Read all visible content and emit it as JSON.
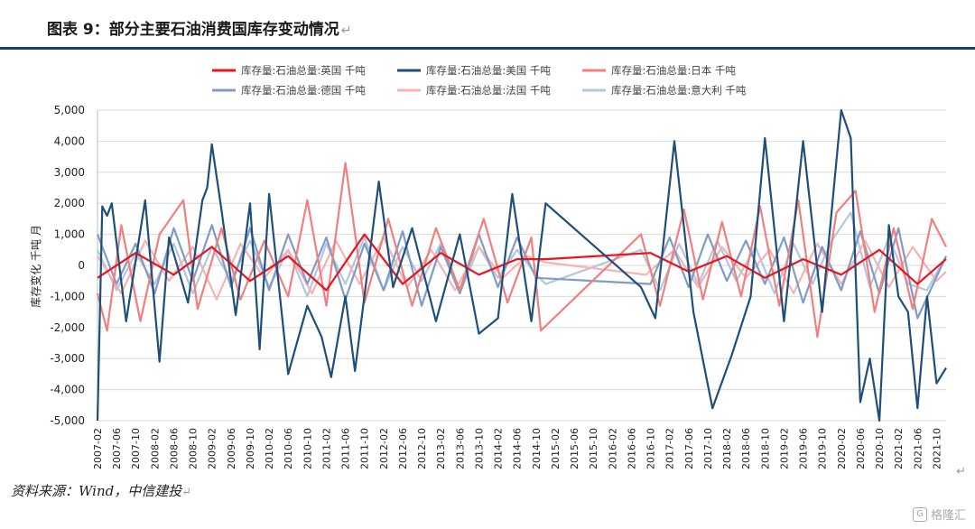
{
  "title": "图表 9：部分主要石油消费国库存变动情况",
  "source": "资料来源：Wind，中信建投",
  "watermark": "格隆汇",
  "return_mark": "↵",
  "chart_data": {
    "type": "line",
    "ylabel": "库存变化 千吨 月",
    "ylim": [
      -5000,
      5000
    ],
    "yticks": [
      5000,
      4000,
      3000,
      2000,
      1000,
      0,
      -1000,
      -2000,
      -3000,
      -4000,
      -5000
    ],
    "ytick_labels": [
      "5,000",
      "4,000",
      "3,000",
      "2,000",
      "1,000",
      "0",
      "-1,000",
      "-2,000",
      "-3,000",
      "-4,000",
      "-5,000"
    ],
    "grid": true,
    "legend_position": "top",
    "x_start": "2007-02",
    "x_end": "2021-12",
    "xtick_labels": [
      "2007-02",
      "2007-06",
      "2007-10",
      "2008-02",
      "2008-06",
      "2008-10",
      "2009-02",
      "2009-06",
      "2009-10",
      "2010-02",
      "2010-06",
      "2010-10",
      "2011-02",
      "2011-06",
      "2011-10",
      "2012-02",
      "2012-06",
      "2012-10",
      "2013-02",
      "2013-06",
      "2013-10",
      "2014-02",
      "2014-06",
      "2014-10",
      "2015-02",
      "2015-06",
      "2015-10",
      "2016-02",
      "2016-06",
      "2016-10",
      "2017-02",
      "2017-06",
      "2017-10",
      "2018-02",
      "2018-06",
      "2018-10",
      "2019-02",
      "2019-06",
      "2019-10",
      "2020-02",
      "2020-06",
      "2020-10",
      "2021-02",
      "2021-06",
      "2021-10"
    ],
    "series": [
      {
        "name": "库存量:石油总量:英国  千吨",
        "color": "#e8141e",
        "width": 2.2,
        "x": [
          "2007-02",
          "2007-10",
          "2008-06",
          "2009-02",
          "2009-10",
          "2010-06",
          "2011-02",
          "2011-10",
          "2012-06",
          "2013-02",
          "2013-10",
          "2014-06",
          "2014-12",
          "2016-10",
          "2017-06",
          "2018-02",
          "2018-10",
          "2019-06",
          "2020-02",
          "2020-10",
          "2021-06",
          "2021-12"
        ],
        "values": [
          -400,
          400,
          -300,
          600,
          -500,
          300,
          -800,
          1000,
          -600,
          400,
          -300,
          200,
          200,
          400,
          -200,
          300,
          -400,
          200,
          -300,
          500,
          -600,
          200
        ]
      },
      {
        "name": "库存量:石油总量:美国  千吨",
        "color": "#1f4e79",
        "width": 2.2,
        "x": [
          "2007-02",
          "2007-03",
          "2007-04",
          "2007-05",
          "2007-08",
          "2007-12",
          "2008-03",
          "2008-05",
          "2008-09",
          "2008-12",
          "2009-01",
          "2009-02",
          "2009-04",
          "2009-07",
          "2009-10",
          "2009-12",
          "2010-02",
          "2010-06",
          "2010-10",
          "2011-01",
          "2011-03",
          "2011-06",
          "2011-08",
          "2012-01",
          "2012-04",
          "2012-08",
          "2013-01",
          "2013-06",
          "2013-10",
          "2014-02",
          "2014-05",
          "2014-09",
          "2014-12",
          "2016-08",
          "2016-11",
          "2017-03",
          "2017-07",
          "2017-11",
          "2018-03",
          "2018-07",
          "2018-10",
          "2019-02",
          "2019-06",
          "2019-10",
          "2020-02",
          "2020-04",
          "2020-06",
          "2020-08",
          "2020-10",
          "2020-12",
          "2021-02",
          "2021-04",
          "2021-06",
          "2021-08",
          "2021-10",
          "2021-12"
        ],
        "values": [
          -5000,
          1900,
          1600,
          2000,
          -1800,
          2100,
          -3100,
          900,
          -1200,
          2100,
          2500,
          3900,
          1800,
          -1600,
          2000,
          -2700,
          2300,
          -3500,
          -1300,
          -2300,
          -3600,
          -1000,
          -3400,
          2700,
          -700,
          1200,
          -1800,
          1000,
          -2200,
          -1700,
          2300,
          -1800,
          2000,
          -700,
          -1700,
          4000,
          -1500,
          -4600,
          -2900,
          -1000,
          4100,
          -1800,
          4000,
          -1500,
          5000,
          4100,
          -4400,
          -3000,
          -5000,
          1300,
          -1000,
          -1500,
          -4600,
          -1000,
          -3800,
          -3300
        ]
      },
      {
        "name": "库存量:石油总量:日本  千吨",
        "color": "#f08080",
        "width": 2.2,
        "x": [
          "2007-02",
          "2007-04",
          "2007-07",
          "2007-11",
          "2008-03",
          "2008-08",
          "2008-11",
          "2009-04",
          "2009-08",
          "2010-01",
          "2010-06",
          "2010-10",
          "2011-02",
          "2011-06",
          "2011-10",
          "2012-03",
          "2012-08",
          "2013-01",
          "2013-06",
          "2013-11",
          "2014-04",
          "2014-09",
          "2014-11",
          "2016-08",
          "2016-12",
          "2017-05",
          "2017-09",
          "2018-01",
          "2018-05",
          "2018-09",
          "2019-01",
          "2019-05",
          "2019-09",
          "2020-01",
          "2020-05",
          "2020-09",
          "2021-01",
          "2021-05",
          "2021-09",
          "2021-12"
        ],
        "values": [
          -900,
          -2100,
          1300,
          -1800,
          1000,
          2100,
          -1400,
          1200,
          -1100,
          800,
          -1000,
          2100,
          -1300,
          3300,
          -1200,
          1500,
          -1300,
          1200,
          -800,
          1500,
          -1200,
          900,
          -2100,
          1000,
          -1300,
          1800,
          -1100,
          1400,
          -1000,
          1900,
          -1300,
          2100,
          -2300,
          1700,
          2400,
          -1500,
          1200,
          -1400,
          1500,
          600
        ]
      },
      {
        "name": "库存量:石油总量:德国  千吨",
        "color": "#7f9cc4",
        "width": 2.2,
        "x": [
          "2007-02",
          "2007-06",
          "2007-10",
          "2008-02",
          "2008-06",
          "2008-10",
          "2009-02",
          "2009-06",
          "2009-10",
          "2010-02",
          "2010-06",
          "2010-10",
          "2011-02",
          "2011-06",
          "2011-10",
          "2012-02",
          "2012-06",
          "2012-10",
          "2013-02",
          "2013-06",
          "2013-10",
          "2014-02",
          "2014-06",
          "2014-10",
          "2016-10",
          "2017-02",
          "2017-06",
          "2017-10",
          "2018-02",
          "2018-06",
          "2018-10",
          "2019-02",
          "2019-06",
          "2019-10",
          "2020-02",
          "2020-06",
          "2020-10",
          "2021-02",
          "2021-06",
          "2021-12"
        ],
        "values": [
          1000,
          -600,
          700,
          -900,
          1200,
          -500,
          1300,
          -700,
          1200,
          -800,
          1000,
          -600,
          900,
          -1100,
          700,
          -800,
          1100,
          -1300,
          600,
          -900,
          1000,
          -700,
          900,
          -400,
          -600,
          900,
          -700,
          1000,
          -500,
          800,
          -600,
          900,
          -1200,
          600,
          -800,
          1100,
          -900,
          1200,
          -1700,
          300
        ]
      },
      {
        "name": "库存量:石油总量:法国  千吨",
        "color": "#f5b3b3",
        "width": 2.2,
        "x": [
          "2007-02",
          "2007-07",
          "2007-12",
          "2008-05",
          "2008-10",
          "2009-03",
          "2009-08",
          "2010-01",
          "2010-06",
          "2010-11",
          "2011-04",
          "2011-09",
          "2012-02",
          "2012-07",
          "2012-12",
          "2013-05",
          "2013-10",
          "2014-03",
          "2014-08",
          "2014-12",
          "2016-09",
          "2017-03",
          "2017-08",
          "2018-01",
          "2018-06",
          "2018-11",
          "2019-04",
          "2019-09",
          "2020-02",
          "2020-07",
          "2020-12",
          "2021-05",
          "2021-10",
          "2021-12"
        ],
        "values": [
          300,
          -900,
          800,
          -500,
          600,
          -1100,
          700,
          -400,
          500,
          -900,
          800,
          -600,
          900,
          -700,
          500,
          -800,
          600,
          -400,
          300,
          100,
          -300,
          500,
          -700,
          600,
          -400,
          500,
          -900,
          700,
          -600,
          800,
          -700,
          600,
          -500,
          -200
        ]
      },
      {
        "name": "库存量:石油总量:意大利  千吨",
        "color": "#b4c6e0",
        "width": 2.2,
        "x": [
          "2007-02",
          "2007-06",
          "2007-10",
          "2008-02",
          "2008-06",
          "2008-10",
          "2009-02",
          "2009-06",
          "2009-10",
          "2010-02",
          "2010-06",
          "2010-10",
          "2011-02",
          "2011-06",
          "2011-10",
          "2012-02",
          "2012-06",
          "2012-10",
          "2013-02",
          "2013-06",
          "2013-10",
          "2014-02",
          "2014-06",
          "2014-10",
          "2014-12",
          "2016-08",
          "2016-12",
          "2017-04",
          "2017-08",
          "2017-12",
          "2018-04",
          "2018-08",
          "2018-12",
          "2019-04",
          "2019-08",
          "2019-12",
          "2020-04",
          "2020-08",
          "2020-12",
          "2021-04",
          "2021-08",
          "2021-12"
        ],
        "values": [
          500,
          -800,
          400,
          -600,
          700,
          -900,
          600,
          -500,
          800,
          -700,
          500,
          -1000,
          700,
          -600,
          900,
          -800,
          600,
          -500,
          700,
          -900,
          600,
          -400,
          500,
          -300,
          -600,
          500,
          -800,
          700,
          -600,
          800,
          -500,
          600,
          -900,
          700,
          -600,
          800,
          1700,
          -700,
          900,
          -600,
          -800,
          300
        ]
      }
    ]
  }
}
